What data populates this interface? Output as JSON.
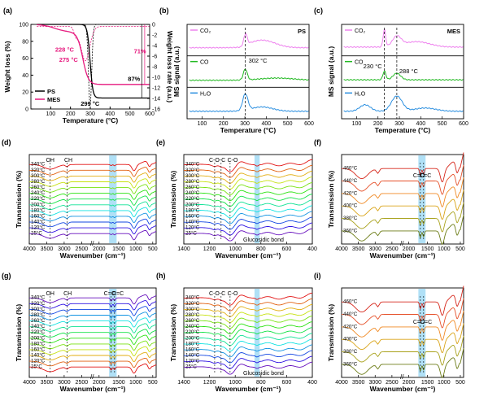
{
  "chart_data": [
    {
      "panel": "(a)",
      "type": "line",
      "xlabel": "Temperature (°C)",
      "ylabel": "Weight loss (%)",
      "y2label": "Weight loss rate (a.u.)",
      "xlim": [
        0,
        600
      ],
      "ylim": [
        0,
        100
      ],
      "y2lim": [
        -16,
        0
      ],
      "xticks": [
        "100",
        "200",
        "300",
        "400",
        "500",
        "600"
      ],
      "yticks": [
        "0",
        "20",
        "40",
        "60",
        "80",
        "100"
      ],
      "y2ticks": [
        "0",
        "-2",
        "-4",
        "-6",
        "-8",
        "-10",
        "-12",
        "-14",
        "-16"
      ],
      "legend": [
        "PS",
        "MES"
      ],
      "annotations": [
        "228 °C",
        "275 °C",
        "299 °C",
        "71%",
        "87%"
      ],
      "colors": {
        "PS": "#000000",
        "MES": "#e6197e"
      }
    },
    {
      "panel": "(b)",
      "type": "line",
      "xlabel": "Temperature (°C)",
      "ylabel": "MS signal (a.u.)",
      "tag": "PS",
      "xticks": [
        "100",
        "200",
        "300",
        "400",
        "500",
        "600"
      ],
      "series": [
        {
          "name": "CO₂",
          "color": "#ee82ee"
        },
        {
          "name": "CO",
          "color": "#22b922"
        },
        {
          "name": "H₂O",
          "color": "#2b8fe0"
        }
      ],
      "annotations": [
        "302 °C"
      ]
    },
    {
      "panel": "(c)",
      "type": "line",
      "xlabel": "Temperature (°C)",
      "ylabel": "MS signal (a.u.)",
      "tag": "MES",
      "xticks": [
        "100",
        "200",
        "300",
        "400",
        "500",
        "600"
      ],
      "series": [
        {
          "name": "CO₂",
          "color": "#ee82ee"
        },
        {
          "name": "CO",
          "color": "#22b922"
        },
        {
          "name": "H₂O",
          "color": "#2b8fe0"
        }
      ],
      "annotations": [
        "230 °C",
        "288 °C"
      ]
    },
    {
      "panel": "(d)",
      "type": "line",
      "xlabel": "Wavenumber (cm⁻¹)",
      "ylabel": "Transmission (%)",
      "xticks": [
        "4000",
        "3500",
        "3000",
        "2500",
        "2000",
        "1500",
        "1000",
        "500"
      ],
      "series_labels": [
        "340°C",
        "320°C",
        "300°C",
        "280°C",
        "260°C",
        "240°C",
        "220°C",
        "200°C",
        "180°C",
        "160°C",
        "140°C",
        "120°C",
        "25°C"
      ],
      "annotations": [
        "OH",
        "CH"
      ]
    },
    {
      "panel": "(e)",
      "type": "line",
      "xlabel": "Wavenumber (cm⁻¹)",
      "ylabel": "Transmission (%)",
      "xticks": [
        "1400",
        "1200",
        "1000",
        "800",
        "600",
        "400"
      ],
      "series_labels": [
        "340°C",
        "320°C",
        "300°C",
        "280°C",
        "260°C",
        "240°C",
        "220°C",
        "200°C",
        "180°C",
        "160°C",
        "140°C",
        "120°C",
        "25°C"
      ],
      "annotations": [
        "C-O-C",
        "C-O",
        "Glucosidic bond"
      ]
    },
    {
      "panel": "(f)",
      "type": "line",
      "xlabel": "Wavenumber (cm⁻¹)",
      "ylabel": "Transmission (%)",
      "xticks": [
        "4000",
        "3500",
        "3000",
        "2500",
        "2000",
        "1500",
        "1000",
        "500"
      ],
      "series_labels": [
        "460°C",
        "440°C",
        "420°C",
        "400°C",
        "380°C",
        "360°C"
      ],
      "annotations": [
        "C=O",
        "C=C"
      ]
    },
    {
      "panel": "(g)",
      "type": "line",
      "xlabel": "Wavenumber (cm⁻¹)",
      "ylabel": "Transmission (%)",
      "xticks": [
        "4000",
        "3500",
        "3000",
        "2500",
        "2000",
        "1500",
        "1000",
        "500"
      ],
      "series_labels": [
        "340°C",
        "320°C",
        "300°C",
        "280°C",
        "260°C",
        "240°C",
        "220°C",
        "200°C",
        "180°C",
        "160°C",
        "140°C",
        "120°C",
        "25°C"
      ],
      "annotations": [
        "OH",
        "CH",
        "C=O",
        "C=C"
      ]
    },
    {
      "panel": "(h)",
      "type": "line",
      "xlabel": "Wavenumber (cm⁻¹)",
      "ylabel": "Transmission (%)",
      "xticks": [
        "1400",
        "1200",
        "1000",
        "800",
        "600",
        "400"
      ],
      "series_labels": [
        "340°C",
        "320°C",
        "300°C",
        "280°C",
        "260°C",
        "240°C",
        "220°C",
        "200°C",
        "180°C",
        "160°C",
        "140°C",
        "120°C",
        "25°C"
      ],
      "annotations": [
        "C-O-C",
        "C-O",
        "Glucosidic bond"
      ]
    },
    {
      "panel": "(i)",
      "type": "line",
      "xlabel": "Wavenumber (cm⁻¹)",
      "ylabel": "Transmission (%)",
      "xticks": [
        "4000",
        "3500",
        "3000",
        "2500",
        "2000",
        "1500",
        "1000",
        "500"
      ],
      "series_labels": [
        "460°C",
        "440°C",
        "420°C",
        "400°C",
        "380°C",
        "360°C"
      ],
      "annotations": [
        "C=O",
        "C=C"
      ]
    }
  ]
}
